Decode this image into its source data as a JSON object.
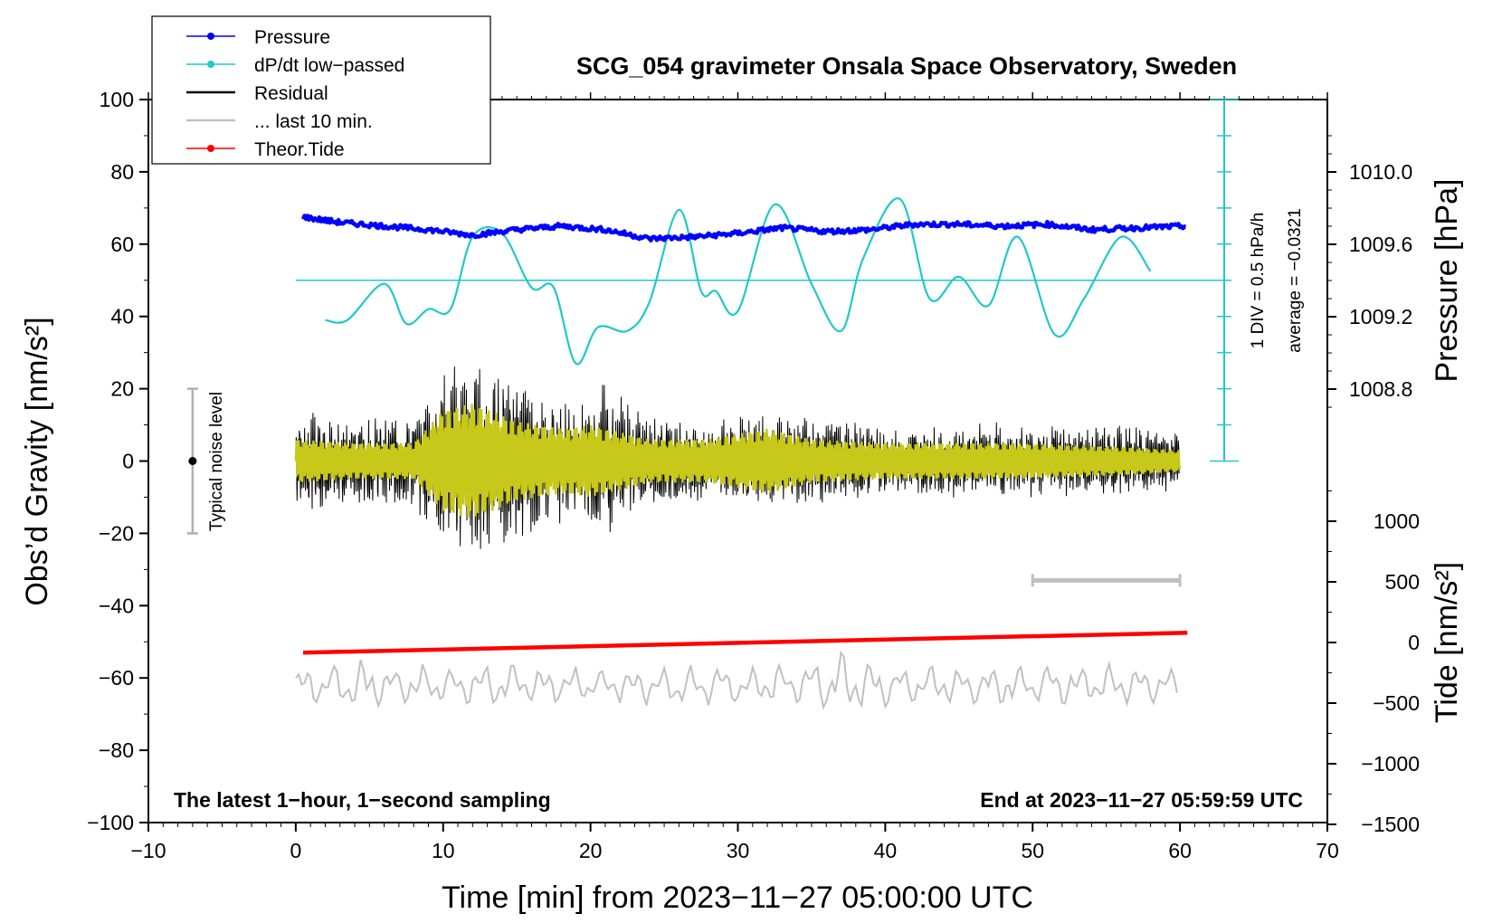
{
  "chart_data": {
    "type": "line",
    "title": "SCG_054 gravimeter Onsala Space Observatory, Sweden",
    "xlabel": "Time [min] from 2023−11−27 05:00:00 UTC",
    "ylabel_left": "Obs’d Gravity [nm/s²]",
    "ylabel_right_top": "Pressure [hPa]",
    "ylabel_right_bottom": "Tide [nm/s²]",
    "xlim": [
      -10,
      70
    ],
    "ylim": [
      -100,
      100
    ],
    "xticks": [
      "−10",
      "0",
      "10",
      "20",
      "30",
      "40",
      "50",
      "60",
      "70"
    ],
    "yticks": [
      "−100",
      "−80",
      "−60",
      "−40",
      "−20",
      "0",
      "20",
      "40",
      "60",
      "80",
      "100"
    ],
    "pressure_ticks": [
      "1010.0",
      "1009.6",
      "1009.2",
      "1008.8"
    ],
    "pressure_tick_values": [
      1010.0,
      1009.6,
      1009.2,
      1008.8
    ],
    "tide_ticks": [
      "1000",
      "500",
      "0",
      "−500",
      "−1000",
      "−1500"
    ],
    "tide_tick_values": [
      1000,
      500,
      0,
      -500,
      -1000,
      -1500
    ],
    "legend": [
      {
        "label": "Pressure",
        "color": "#0000ff",
        "marker": true
      },
      {
        "label": "dP/dt low−passed",
        "color": "#20c8c8",
        "marker": true
      },
      {
        "label": "Residual",
        "color": "#000000",
        "marker": false
      },
      {
        "label": "... last 10 min.",
        "color": "#c0c0c0",
        "marker": false
      },
      {
        "label": "Theor.Tide",
        "color": "#ff0000",
        "marker": true
      }
    ],
    "annotations": {
      "bottom_left": "The latest 1−hour, 1−second sampling",
      "bottom_right": "End at 2023−11−27 05:59:59 UTC",
      "noise": "Typical noise level",
      "div_label": "1 DIV = 0.5 hPa/h",
      "average_label": "average = −0.0321"
    },
    "noise_range": [
      -20,
      20
    ],
    "noise_x": -7,
    "ten_min_bar": [
      50,
      60
    ],
    "ten_min_bar_y": -33,
    "dpdt_baseline_y": 50,
    "div_scale": {
      "x": 63,
      "y_bottom": 0,
      "y_top": 100,
      "divisions": 10
    },
    "series": [
      {
        "name": "Pressure",
        "color": "#0000ff",
        "x": [
          0.5,
          3,
          6,
          9,
          12,
          15,
          18,
          21,
          24,
          27,
          30,
          33,
          36,
          39,
          42,
          45,
          48,
          51,
          54,
          57,
          60.5
        ],
        "y": [
          67.5,
          66,
          65,
          64,
          62.5,
          64,
          65,
          64,
          61.5,
          62,
          63,
          64.5,
          63.5,
          64,
          65.5,
          65.5,
          65,
          65.5,
          64,
          64.5,
          65
        ]
      },
      {
        "name": "dP/dt low-passed",
        "color": "#20c8c8",
        "x": [
          2,
          3.5,
          6,
          7.5,
          9,
          10.5,
          12,
          14,
          16,
          17.5,
          19,
          20.5,
          22.5,
          24,
          26,
          27.5,
          28.5,
          30,
          32.5,
          35,
          37,
          38.5,
          41,
          43,
          45,
          47,
          49,
          51.5,
          53.5,
          56,
          58
        ],
        "y": [
          39,
          39,
          49,
          38,
          42,
          42,
          62,
          63,
          48,
          48,
          27,
          37,
          36,
          44,
          69.5,
          47,
          47,
          41.5,
          71,
          49,
          36,
          56,
          72.5,
          45,
          51,
          43,
          62,
          35,
          45,
          62,
          52.5
        ]
      },
      {
        "name": "Theor.Tide",
        "color": "#ff0000",
        "x": [
          0.5,
          60.5
        ],
        "y": [
          -53,
          -47.5
        ]
      }
    ],
    "residual_envelope": {
      "x": [
        0,
        4,
        8,
        10,
        11,
        13,
        15,
        17,
        19,
        20,
        21,
        24,
        28,
        30,
        32,
        35,
        38,
        40,
        44,
        48,
        52,
        56,
        60
      ],
      "amp": [
        14,
        12,
        13,
        24,
        28,
        26,
        22,
        18,
        17,
        20,
        22,
        12,
        11,
        13,
        13,
        12,
        11,
        10,
        10,
        11,
        10,
        10,
        9
      ]
    },
    "filtered_envelope": {
      "x": [
        0,
        4,
        8,
        10,
        12,
        15,
        18,
        20,
        24,
        28,
        32,
        35,
        40,
        48,
        56,
        60
      ],
      "amp": [
        6,
        5,
        5,
        14,
        16,
        11,
        9,
        10,
        6,
        6,
        9,
        6,
        5,
        5,
        4,
        3
      ]
    },
    "last10": {
      "x": [
        0,
        3.5,
        7,
        12,
        18,
        23,
        27,
        31,
        35,
        37,
        39,
        45,
        51,
        56,
        60
      ],
      "base": -62,
      "amp": [
        5,
        7,
        5,
        6,
        5,
        5,
        6,
        5,
        6,
        10,
        6,
        5,
        6,
        5,
        4
      ]
    }
  }
}
